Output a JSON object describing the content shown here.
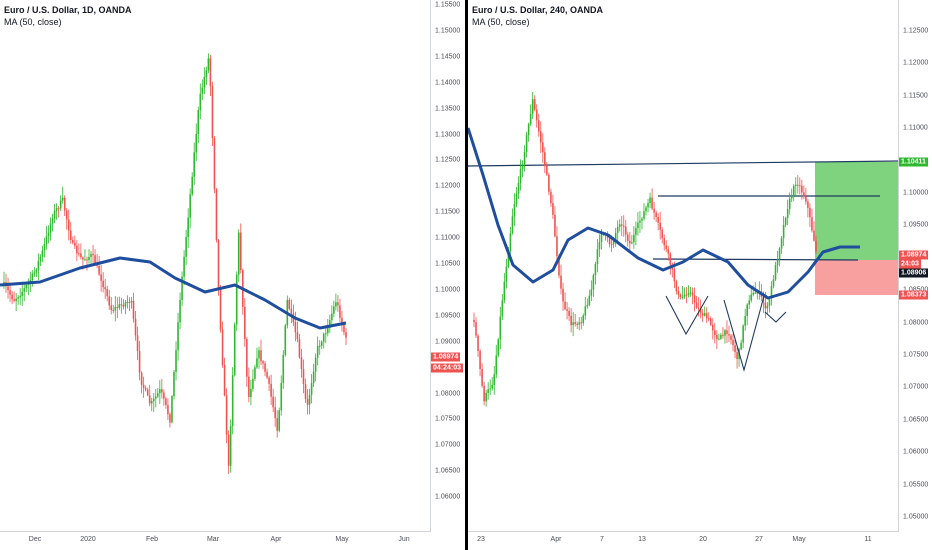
{
  "left_chart": {
    "title": "Euro / U.S. Dollar, 1D, OANDA",
    "indicator": "MA (50, close)",
    "y_ticks": [
      "1.15500",
      "1.15000",
      "1.14500",
      "1.14000",
      "1.13500",
      "1.13000",
      "1.12500",
      "1.12000",
      "1.11500",
      "1.11000",
      "1.10500",
      "1.10000",
      "1.09500",
      "1.09000",
      "1.08500",
      "1.08000",
      "1.07500",
      "1.07000",
      "1.06500",
      "1.06000"
    ],
    "x_ticks": [
      "Dec",
      "2020",
      "Feb",
      "Mar",
      "Apr",
      "May",
      "Jun"
    ],
    "price_badge": "1.08974",
    "timer_badge": "04:24:03"
  },
  "right_chart": {
    "title": "Euro / U.S. Dollar, 240, OANDA",
    "indicator": "MA (50, close)",
    "y_ticks": [
      "1.12500",
      "1.12000",
      "1.11500",
      "1.11000",
      "1.10500",
      "1.10000",
      "1.09500",
      "1.09000",
      "1.08500",
      "1.08000",
      "1.07500",
      "1.07000",
      "1.06500",
      "1.06000",
      "1.05500",
      "1.05000"
    ],
    "x_ticks": [
      "23",
      "Apr",
      "7",
      "13",
      "20",
      "27",
      "May",
      "11"
    ],
    "badges": {
      "target": "1.10411",
      "price": "1.08974",
      "timer": "24:03",
      "entry": "1.08906",
      "stop": "1.08373"
    }
  },
  "colors": {
    "up": "#26a69a",
    "up_green": "#2eb82e",
    "down": "#ef5350",
    "ma": "#1f4e9e",
    "target_zone": "#7fd37f",
    "stop_zone": "#f8a0a0",
    "line": "#1e3a5f"
  }
}
